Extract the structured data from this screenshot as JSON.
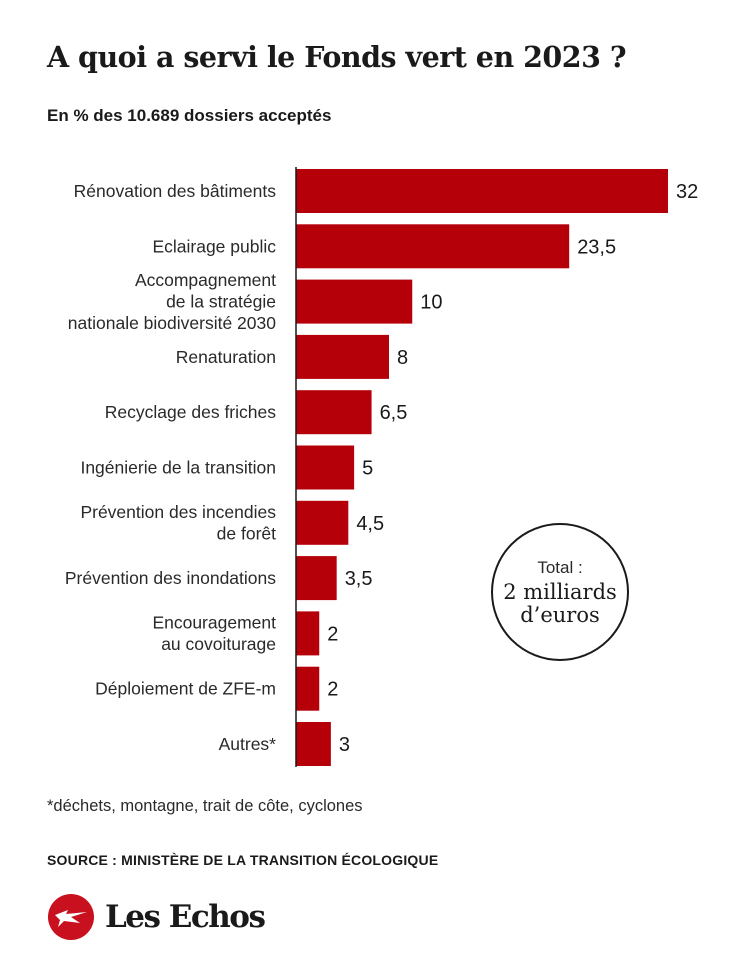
{
  "chart_data": {
    "type": "bar",
    "orientation": "horizontal",
    "title": "A quoi a servi le Fonds vert en 2023 ?",
    "subtitle": "En % des 10.689 dossiers acceptés",
    "categories": [
      [
        "Rénovation des bâtiments"
      ],
      [
        "Eclairage public"
      ],
      [
        "Accompagnement",
        "de la stratégie",
        "nationale biodiversité 2030"
      ],
      [
        "Renaturation"
      ],
      [
        "Recyclage des friches"
      ],
      [
        "Ingénierie de la transition"
      ],
      [
        "Prévention des incendies",
        "de forêt"
      ],
      [
        "Prévention des inondations"
      ],
      [
        "Encouragement",
        "au covoiturage"
      ],
      [
        "Déploiement de ZFE-m"
      ],
      [
        "Autres*"
      ]
    ],
    "values": [
      32,
      23.5,
      10,
      8,
      6.5,
      5,
      4.5,
      3.5,
      2,
      2,
      3
    ],
    "value_labels": [
      "32",
      "23,5",
      "10",
      "8",
      "6,5",
      "5",
      "4,5",
      "3,5",
      "2",
      "2",
      "3"
    ],
    "bar_color": "#b5000a",
    "axis_color": "#1a1a1a",
    "gridlines": false,
    "legend": false
  },
  "annotation": {
    "total_label": "Total :",
    "total_value": "2 milliards d’euros"
  },
  "footnote": "*déchets, montagne, trait de côte, cyclones",
  "source": "SOURCE : MINISTÈRE DE LA TRANSITION ÉCOLOGIQUE",
  "brand": {
    "name": "Les Echos",
    "logo_icon": "les-echos-globe-logo",
    "logo_color": "#c8101e"
  }
}
